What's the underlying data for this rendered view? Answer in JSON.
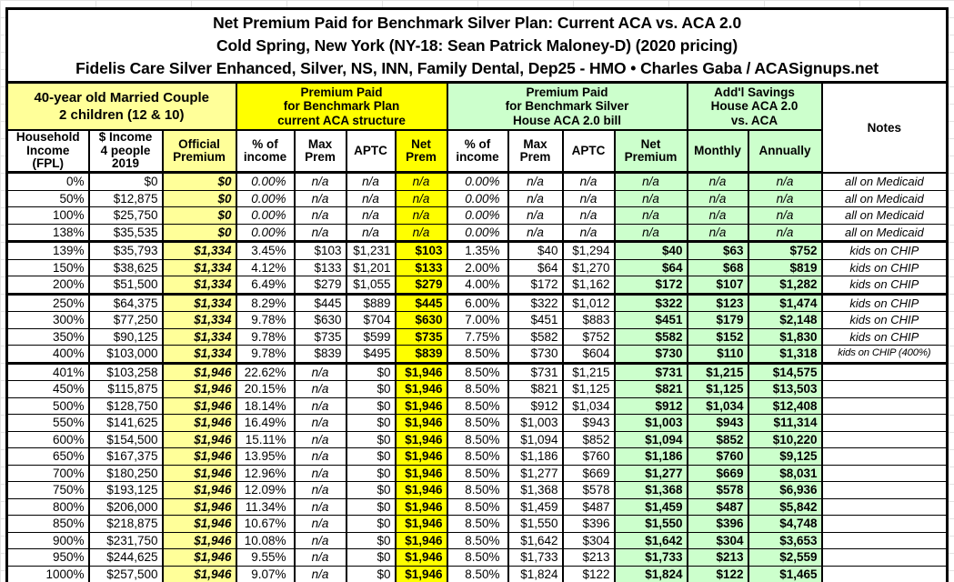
{
  "accent_colors": {
    "bright_yellow": "#ffff00",
    "pale_yellow": "#ffff99",
    "pale_green": "#ccffcc",
    "border_black": "#000000"
  },
  "chart_data": {
    "type": "table",
    "title": {
      "line1": "Net Premium Paid for Benchmark Silver Plan: Current ACA vs. ACA 2.0",
      "line2": "Cold Spring, New York (NY-18: Sean Patrick Maloney-D) (2020 pricing)",
      "line3": "Fidelis Care Silver Enhanced, Silver, NS, INN, Family Dental, Dep25 - HMO • Charles Gaba / ACASignups.net"
    },
    "column_groups": {
      "demographics": "40-year old Married Couple\n2 children (12 & 10)",
      "current_aca": "Premium Paid\nfor Benchmark Plan\ncurrent ACA structure",
      "aca_2_0": "Premium Paid\nfor Benchmark Silver\nHouse ACA 2.0 bill",
      "savings": "Add'l Savings\nHouse ACA 2.0\nvs. ACA",
      "notes": "Notes"
    },
    "columns": [
      "Household\nIncome\n(FPL)",
      "$ Income\n4 people\n2019",
      "Official\nPremium",
      "% of\nincome",
      "Max\nPrem",
      "APTC",
      "Net\nPrem",
      "% of\nincome",
      "Max\nPrem",
      "APTC",
      "Net\nPremium",
      "Monthly",
      "Annually"
    ],
    "rows": [
      {
        "cells": [
          "0%",
          "$0",
          "$0",
          "0.00%",
          "n/a",
          "n/a",
          "n/a",
          "0.00%",
          "n/a",
          "n/a",
          "n/a",
          "n/a",
          "n/a",
          "all on Medicaid"
        ],
        "thick_bottom": false
      },
      {
        "cells": [
          "50%",
          "$12,875",
          "$0",
          "0.00%",
          "n/a",
          "n/a",
          "n/a",
          "0.00%",
          "n/a",
          "n/a",
          "n/a",
          "n/a",
          "n/a",
          "all on Medicaid"
        ],
        "thick_bottom": false
      },
      {
        "cells": [
          "100%",
          "$25,750",
          "$0",
          "0.00%",
          "n/a",
          "n/a",
          "n/a",
          "0.00%",
          "n/a",
          "n/a",
          "n/a",
          "n/a",
          "n/a",
          "all on Medicaid"
        ],
        "thick_bottom": false
      },
      {
        "cells": [
          "138%",
          "$35,535",
          "$0",
          "0.00%",
          "n/a",
          "n/a",
          "n/a",
          "0.00%",
          "n/a",
          "n/a",
          "n/a",
          "n/a",
          "n/a",
          "all on Medicaid"
        ],
        "thick_bottom": true
      },
      {
        "cells": [
          "139%",
          "$35,793",
          "$1,334",
          "3.45%",
          "$103",
          "$1,231",
          "$103",
          "1.35%",
          "$40",
          "$1,294",
          "$40",
          "$63",
          "$752",
          "kids on CHIP"
        ],
        "thick_bottom": false
      },
      {
        "cells": [
          "150%",
          "$38,625",
          "$1,334",
          "4.12%",
          "$133",
          "$1,201",
          "$133",
          "2.00%",
          "$64",
          "$1,270",
          "$64",
          "$68",
          "$819",
          "kids on CHIP"
        ],
        "thick_bottom": false
      },
      {
        "cells": [
          "200%",
          "$51,500",
          "$1,334",
          "6.49%",
          "$279",
          "$1,055",
          "$279",
          "4.00%",
          "$172",
          "$1,162",
          "$172",
          "$107",
          "$1,282",
          "kids on CHIP"
        ],
        "thick_bottom": true
      },
      {
        "cells": [
          "250%",
          "$64,375",
          "$1,334",
          "8.29%",
          "$445",
          "$889",
          "$445",
          "6.00%",
          "$322",
          "$1,012",
          "$322",
          "$123",
          "$1,474",
          "kids on CHIP"
        ],
        "thick_bottom": false
      },
      {
        "cells": [
          "300%",
          "$77,250",
          "$1,334",
          "9.78%",
          "$630",
          "$704",
          "$630",
          "7.00%",
          "$451",
          "$883",
          "$451",
          "$179",
          "$2,148",
          "kids on CHIP"
        ],
        "thick_bottom": false
      },
      {
        "cells": [
          "350%",
          "$90,125",
          "$1,334",
          "9.78%",
          "$735",
          "$599",
          "$735",
          "7.75%",
          "$582",
          "$752",
          "$582",
          "$152",
          "$1,830",
          "kids on CHIP"
        ],
        "thick_bottom": false
      },
      {
        "cells": [
          "400%",
          "$103,000",
          "$1,334",
          "9.78%",
          "$839",
          "$495",
          "$839",
          "8.50%",
          "$730",
          "$604",
          "$730",
          "$110",
          "$1,318",
          "kids on CHIP (400%)"
        ],
        "thick_bottom": true
      },
      {
        "cells": [
          "401%",
          "$103,258",
          "$1,946",
          "22.62%",
          "n/a",
          "$0",
          "$1,946",
          "8.50%",
          "$731",
          "$1,215",
          "$731",
          "$1,215",
          "$14,575",
          ""
        ],
        "thick_bottom": false
      },
      {
        "cells": [
          "450%",
          "$115,875",
          "$1,946",
          "20.15%",
          "n/a",
          "$0",
          "$1,946",
          "8.50%",
          "$821",
          "$1,125",
          "$821",
          "$1,125",
          "$13,503",
          ""
        ],
        "thick_bottom": false
      },
      {
        "cells": [
          "500%",
          "$128,750",
          "$1,946",
          "18.14%",
          "n/a",
          "$0",
          "$1,946",
          "8.50%",
          "$912",
          "$1,034",
          "$912",
          "$1,034",
          "$12,408",
          ""
        ],
        "thick_bottom": false
      },
      {
        "cells": [
          "550%",
          "$141,625",
          "$1,946",
          "16.49%",
          "n/a",
          "$0",
          "$1,946",
          "8.50%",
          "$1,003",
          "$943",
          "$1,003",
          "$943",
          "$11,314",
          ""
        ],
        "thick_bottom": false
      },
      {
        "cells": [
          "600%",
          "$154,500",
          "$1,946",
          "15.11%",
          "n/a",
          "$0",
          "$1,946",
          "8.50%",
          "$1,094",
          "$852",
          "$1,094",
          "$852",
          "$10,220",
          ""
        ],
        "thick_bottom": false
      },
      {
        "cells": [
          "650%",
          "$167,375",
          "$1,946",
          "13.95%",
          "n/a",
          "$0",
          "$1,946",
          "8.50%",
          "$1,186",
          "$760",
          "$1,186",
          "$760",
          "$9,125",
          ""
        ],
        "thick_bottom": false
      },
      {
        "cells": [
          "700%",
          "$180,250",
          "$1,946",
          "12.96%",
          "n/a",
          "$0",
          "$1,946",
          "8.50%",
          "$1,277",
          "$669",
          "$1,277",
          "$669",
          "$8,031",
          ""
        ],
        "thick_bottom": false
      },
      {
        "cells": [
          "750%",
          "$193,125",
          "$1,946",
          "12.09%",
          "n/a",
          "$0",
          "$1,946",
          "8.50%",
          "$1,368",
          "$578",
          "$1,368",
          "$578",
          "$6,936",
          ""
        ],
        "thick_bottom": false
      },
      {
        "cells": [
          "800%",
          "$206,000",
          "$1,946",
          "11.34%",
          "n/a",
          "$0",
          "$1,946",
          "8.50%",
          "$1,459",
          "$487",
          "$1,459",
          "$487",
          "$5,842",
          ""
        ],
        "thick_bottom": false
      },
      {
        "cells": [
          "850%",
          "$218,875",
          "$1,946",
          "10.67%",
          "n/a",
          "$0",
          "$1,946",
          "8.50%",
          "$1,550",
          "$396",
          "$1,550",
          "$396",
          "$4,748",
          ""
        ],
        "thick_bottom": false
      },
      {
        "cells": [
          "900%",
          "$231,750",
          "$1,946",
          "10.08%",
          "n/a",
          "$0",
          "$1,946",
          "8.50%",
          "$1,642",
          "$304",
          "$1,642",
          "$304",
          "$3,653",
          ""
        ],
        "thick_bottom": false
      },
      {
        "cells": [
          "950%",
          "$244,625",
          "$1,946",
          "9.55%",
          "n/a",
          "$0",
          "$1,946",
          "8.50%",
          "$1,733",
          "$213",
          "$1,733",
          "$213",
          "$2,559",
          ""
        ],
        "thick_bottom": false
      },
      {
        "cells": [
          "1000%",
          "$257,500",
          "$1,946",
          "9.07%",
          "n/a",
          "$0",
          "$1,946",
          "8.50%",
          "$1,824",
          "$122",
          "$1,824",
          "$122",
          "$1,465",
          ""
        ],
        "thick_bottom": true
      }
    ]
  }
}
